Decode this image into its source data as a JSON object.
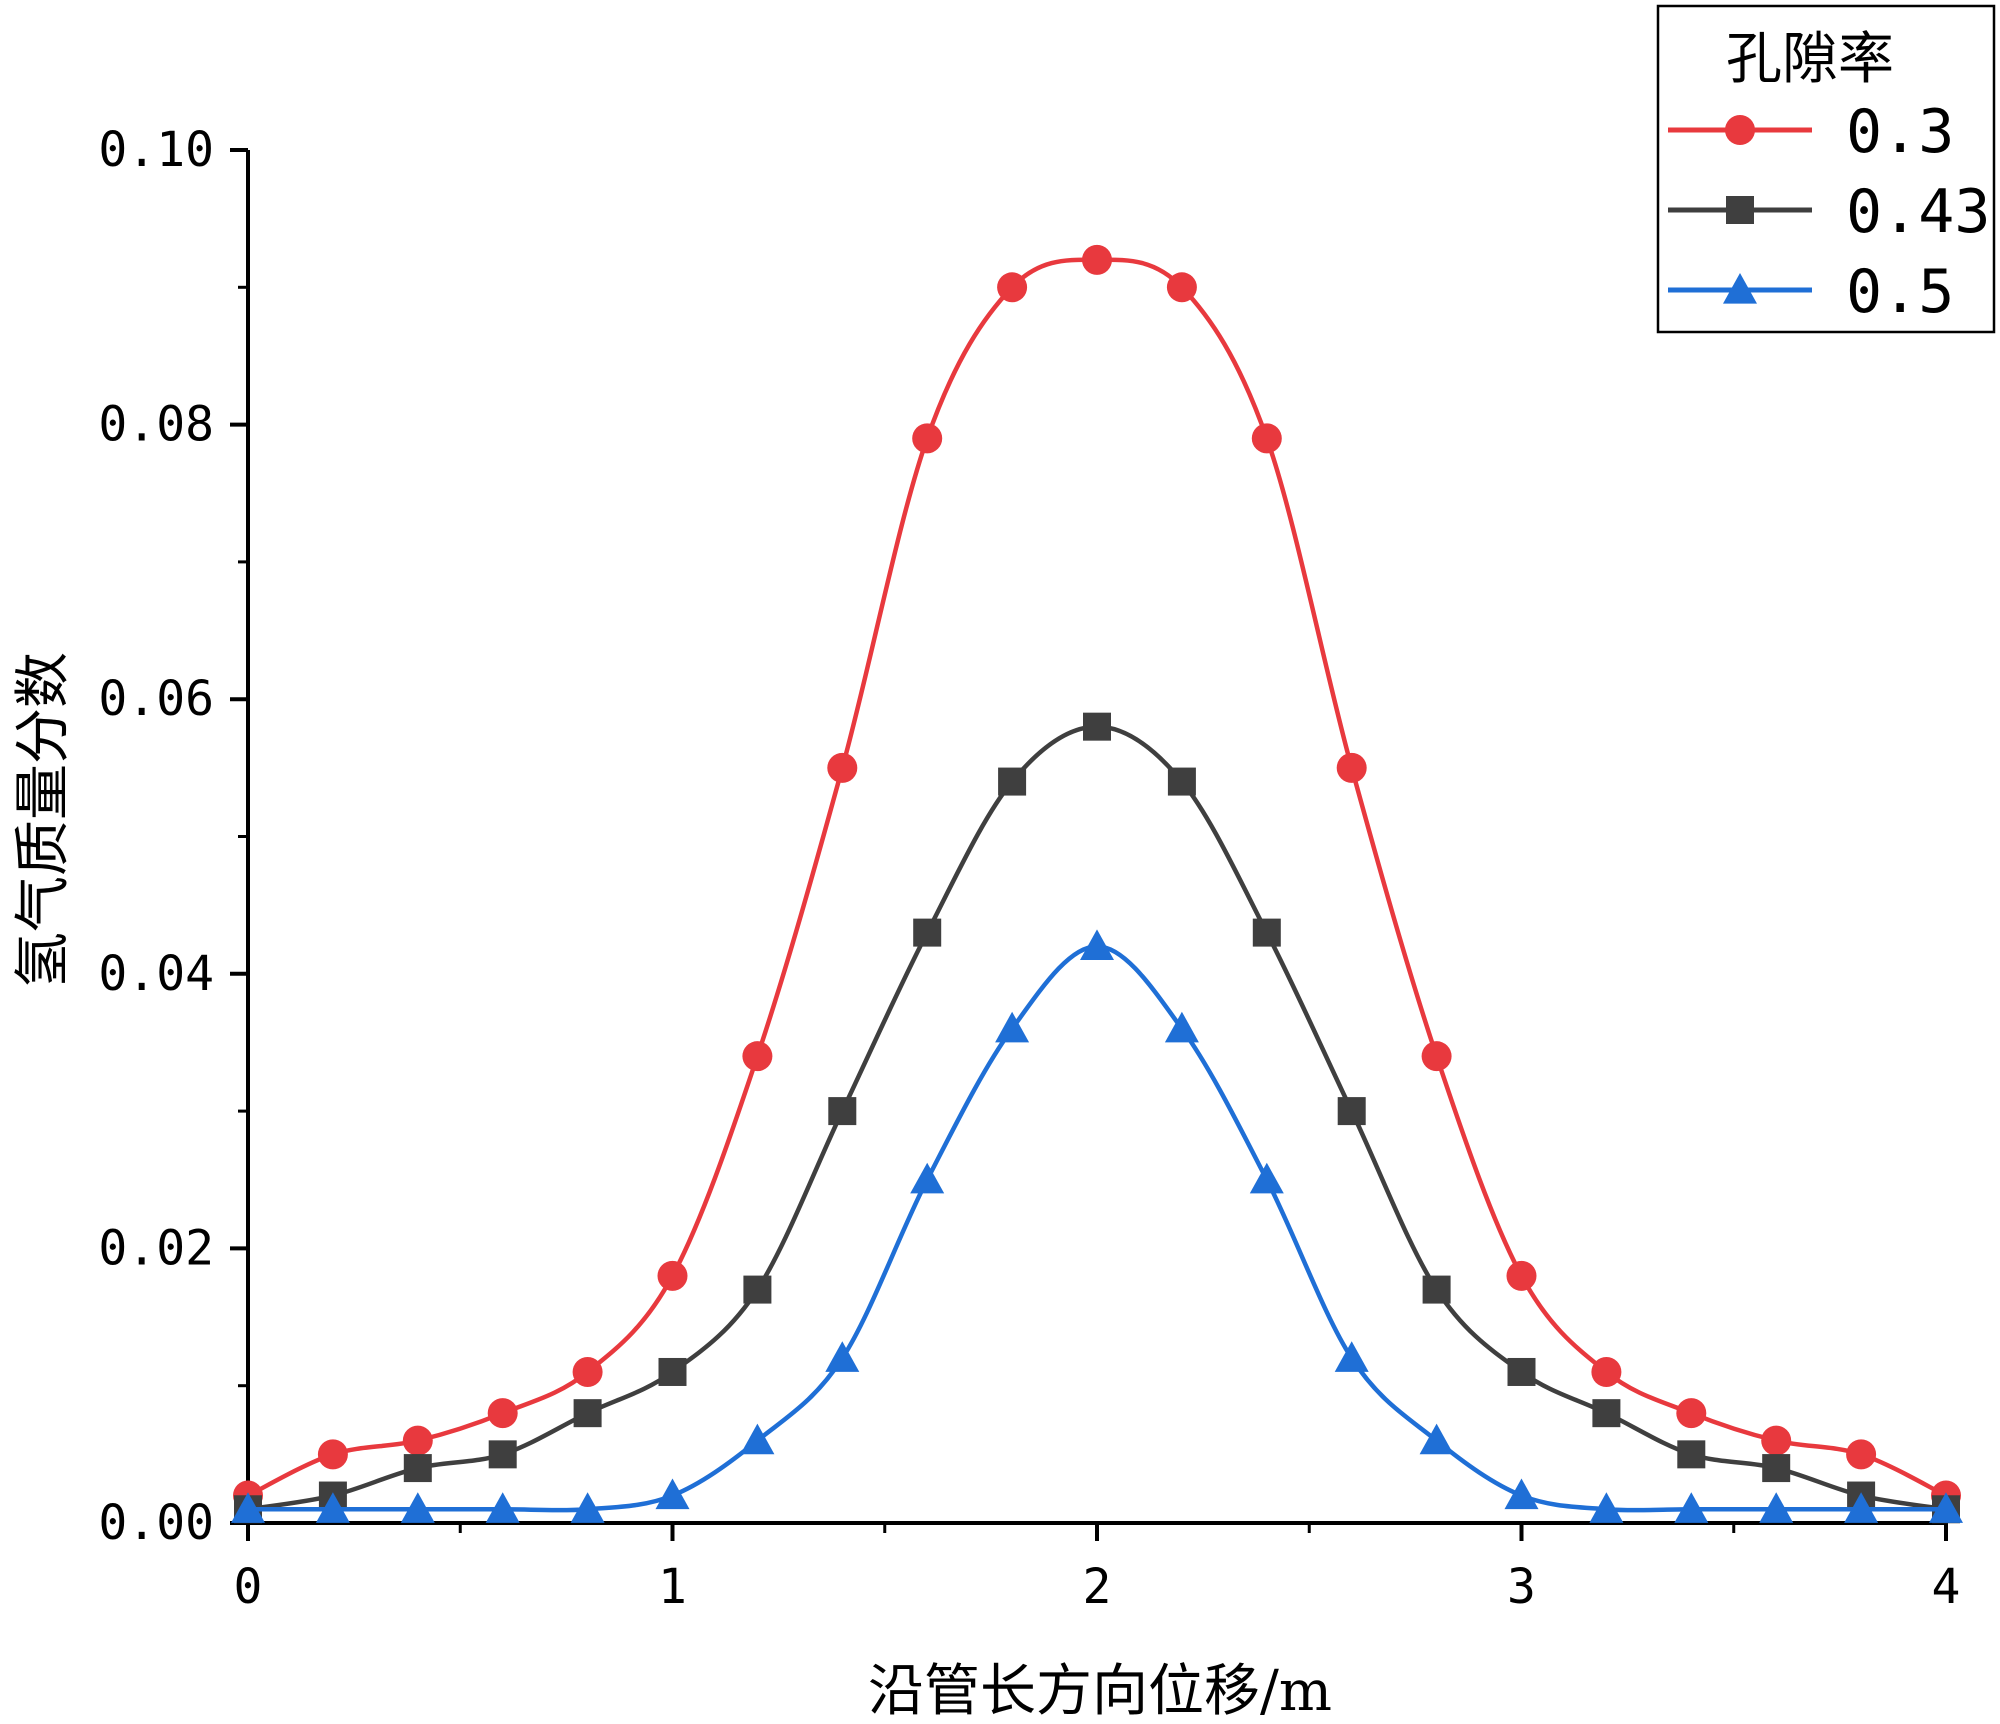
{
  "chart_data": {
    "type": "line",
    "title": "",
    "xlabel": "沿管长方向位移/m",
    "ylabel": "氢气质量分数",
    "xlim": [
      0,
      4
    ],
    "ylim": [
      0,
      0.1
    ],
    "x_ticks": [
      0,
      1,
      2,
      3,
      4
    ],
    "x_tick_labels": [
      "0",
      "1",
      "2",
      "3",
      "4"
    ],
    "y_ticks": [
      0,
      0.02,
      0.04,
      0.06,
      0.08,
      0.1
    ],
    "y_tick_labels": [
      "0.00",
      "0.02",
      "0.04",
      "0.06",
      "0.08",
      "0.10"
    ],
    "legend_title": "孔隙率",
    "legend_position": "top-right",
    "x": [
      0,
      0.2,
      0.4,
      0.6,
      0.8,
      1.0,
      1.2,
      1.4,
      1.6,
      1.8,
      2.0,
      2.2,
      2.4,
      2.6,
      2.8,
      3.0,
      3.2,
      3.4,
      3.6,
      3.8,
      4.0
    ],
    "series": [
      {
        "name": "0.3",
        "marker": "circle",
        "color": "#e8393e",
        "values": [
          0.002,
          0.005,
          0.006,
          0.008,
          0.011,
          0.018,
          0.034,
          0.055,
          0.079,
          0.09,
          0.092,
          0.09,
          0.079,
          0.055,
          0.034,
          0.018,
          0.011,
          0.008,
          0.006,
          0.005,
          0.002
        ]
      },
      {
        "name": "0.43",
        "marker": "square",
        "color": "#3f3f3f",
        "values": [
          0.001,
          0.002,
          0.004,
          0.005,
          0.008,
          0.011,
          0.017,
          0.03,
          0.043,
          0.054,
          0.058,
          0.054,
          0.043,
          0.03,
          0.017,
          0.011,
          0.008,
          0.005,
          0.004,
          0.002,
          0.001
        ]
      },
      {
        "name": "0.5",
        "marker": "triangle",
        "color": "#1f6fd6",
        "values": [
          0.001,
          0.001,
          0.001,
          0.001,
          0.001,
          0.002,
          0.006,
          0.012,
          0.025,
          0.036,
          0.042,
          0.036,
          0.025,
          0.012,
          0.006,
          0.002,
          0.001,
          0.001,
          0.001,
          0.001,
          0.001
        ]
      }
    ]
  }
}
